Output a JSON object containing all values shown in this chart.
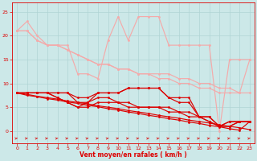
{
  "title": "",
  "xlabel": "Vent moyen/en rafales ( km/h )",
  "background_color": "#cce8e8",
  "grid_color": "#b0d4d4",
  "x": [
    0,
    1,
    2,
    3,
    4,
    5,
    6,
    7,
    8,
    9,
    10,
    11,
    12,
    13,
    14,
    15,
    16,
    17,
    18,
    19,
    20,
    21,
    22,
    23
  ],
  "light_pink": "#f4aaaa",
  "dark_red": "#dd0000",
  "lp_line1": [
    21,
    23,
    20,
    18,
    18,
    18,
    12,
    12,
    11,
    19,
    24,
    19,
    24,
    24,
    24,
    18,
    18,
    18,
    18,
    18,
    0,
    15,
    15,
    15
  ],
  "lp_line2": [
    21,
    21,
    19,
    18,
    18,
    17,
    16,
    15,
    14,
    14,
    13,
    13,
    12,
    12,
    12,
    12,
    11,
    11,
    10,
    10,
    9,
    9,
    8,
    15
  ],
  "lp_line3": [
    21,
    21,
    19,
    18,
    18,
    17,
    16,
    15,
    14,
    14,
    13,
    13,
    12,
    12,
    11,
    11,
    10,
    10,
    9,
    9,
    8,
    8,
    8,
    8
  ],
  "dr_line1": [
    8,
    8,
    8,
    8,
    8,
    8,
    7,
    7,
    8,
    8,
    8,
    9,
    9,
    9,
    9,
    7,
    7,
    7,
    3,
    3,
    1,
    1,
    2,
    2
  ],
  "dr_line2": [
    8,
    8,
    8,
    8,
    8,
    8,
    6,
    6,
    8,
    8,
    8,
    9,
    9,
    9,
    9,
    7,
    6,
    6,
    3,
    3,
    1,
    1,
    2,
    2
  ],
  "dr_line3": [
    8,
    8,
    8,
    8,
    7,
    6,
    5,
    6,
    7,
    7,
    6,
    6,
    5,
    5,
    5,
    5,
    4,
    4,
    3,
    2,
    1,
    2,
    2,
    2
  ],
  "dr_line4": [
    8,
    8,
    8,
    8,
    7,
    6,
    5,
    5,
    6,
    6,
    6,
    5,
    5,
    5,
    5,
    4,
    4,
    3,
    3,
    2,
    1,
    2,
    2,
    2
  ],
  "dr_diag1": [
    8,
    7.7,
    7.3,
    7.0,
    6.7,
    6.3,
    6.0,
    5.7,
    5.3,
    5.0,
    4.7,
    4.3,
    4.0,
    3.7,
    3.3,
    3.0,
    2.7,
    2.3,
    2.0,
    1.7,
    1.3,
    1.0,
    0.7,
    0.3
  ],
  "dr_diag2": [
    8,
    7.5,
    7.2,
    6.8,
    6.5,
    6.1,
    5.8,
    5.4,
    5.1,
    4.7,
    4.4,
    4.0,
    3.7,
    3.3,
    3.0,
    2.6,
    2.3,
    1.9,
    1.6,
    1.2,
    0.9,
    0.5,
    0.2,
    2.0
  ],
  "ylim": [
    -2.5,
    27
  ],
  "xlim": [
    -0.5,
    23.5
  ],
  "yticks": [
    0,
    5,
    10,
    15,
    20,
    25
  ],
  "xticks": [
    0,
    1,
    2,
    3,
    4,
    5,
    6,
    7,
    8,
    9,
    10,
    11,
    12,
    13,
    14,
    15,
    16,
    17,
    18,
    19,
    20,
    21,
    22,
    23
  ]
}
